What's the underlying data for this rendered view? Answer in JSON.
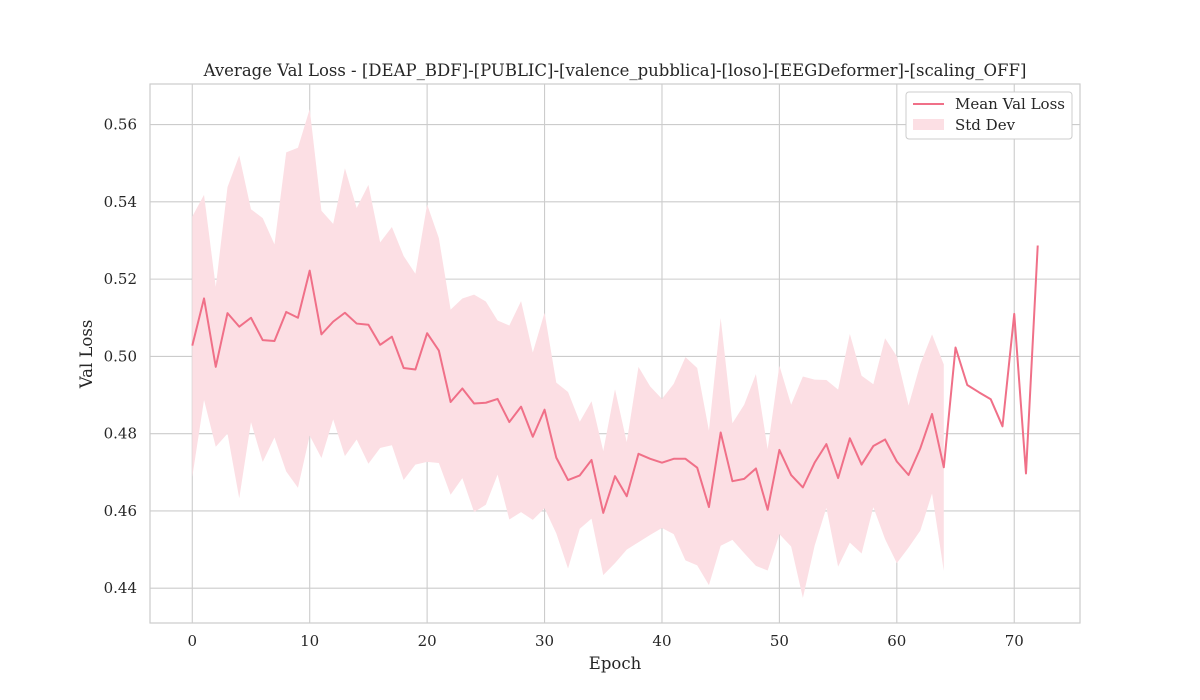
{
  "chart_data": {
    "type": "line",
    "title": "Average Val Loss - [DEAP_BDF]-[PUBLIC]-[valence_pubblica]-[loso]-[EEGDeformer]-[scaling_OFF]",
    "xlabel": "Epoch",
    "ylabel": "Val Loss",
    "xlim": [
      -3.6,
      75.6
    ],
    "ylim": [
      0.431,
      0.5705
    ],
    "xticks": [
      0,
      10,
      20,
      30,
      40,
      50,
      60,
      70
    ],
    "yticks": [
      0.44,
      0.46,
      0.48,
      0.5,
      0.52,
      0.54,
      0.56
    ],
    "ytick_labels": [
      "0.44",
      "0.46",
      "0.48",
      "0.50",
      "0.52",
      "0.54",
      "0.56"
    ],
    "grid": true,
    "legend_position": "top-right",
    "series": [
      {
        "name": "Mean Val Loss",
        "color": "#f07088",
        "x": [
          0,
          1,
          2,
          3,
          4,
          5,
          6,
          7,
          8,
          9,
          10,
          11,
          12,
          13,
          14,
          15,
          16,
          17,
          18,
          19,
          20,
          21,
          22,
          23,
          24,
          25,
          26,
          27,
          28,
          29,
          30,
          31,
          32,
          33,
          34,
          35,
          36,
          37,
          38,
          39,
          40,
          41,
          42,
          43,
          44,
          45,
          46,
          47,
          48,
          49,
          50,
          51,
          52,
          53,
          54,
          55,
          56,
          57,
          58,
          59,
          60,
          61,
          62,
          63,
          64,
          65,
          66,
          67,
          68,
          69,
          70,
          71,
          72
        ],
        "y": [
          0.5028,
          0.515,
          0.4973,
          0.5112,
          0.5077,
          0.51,
          0.5042,
          0.504,
          0.5115,
          0.51,
          0.5222,
          0.5057,
          0.509,
          0.5113,
          0.5085,
          0.5082,
          0.503,
          0.5051,
          0.497,
          0.4966,
          0.506,
          0.5015,
          0.4882,
          0.4917,
          0.4878,
          0.488,
          0.489,
          0.483,
          0.487,
          0.4792,
          0.4862,
          0.4738,
          0.468,
          0.4692,
          0.4732,
          0.4595,
          0.469,
          0.4638,
          0.4748,
          0.4735,
          0.4725,
          0.4735,
          0.4735,
          0.4712,
          0.461,
          0.4803,
          0.4677,
          0.4683,
          0.471,
          0.4603,
          0.4758,
          0.4693,
          0.4661,
          0.4725,
          0.4773,
          0.4685,
          0.4788,
          0.472,
          0.4768,
          0.4785,
          0.4728,
          0.4693,
          0.4762,
          0.4851,
          0.4713,
          0.5023,
          0.4926,
          0.4907,
          0.4889,
          0.4819,
          0.511,
          0.4697,
          0.5287
        ]
      }
    ],
    "band": {
      "name": "Std Dev",
      "color": "#fcdfe4",
      "x": [
        0,
        1,
        2,
        3,
        4,
        5,
        6,
        7,
        8,
        9,
        10,
        11,
        12,
        13,
        14,
        15,
        16,
        17,
        18,
        19,
        20,
        21,
        22,
        23,
        24,
        25,
        26,
        27,
        28,
        29,
        30,
        31,
        32,
        33,
        34,
        35,
        36,
        37,
        38,
        39,
        40,
        41,
        42,
        43,
        44,
        45,
        46,
        47,
        48,
        49,
        50,
        51,
        52,
        53,
        54,
        55,
        56,
        57,
        58,
        59,
        60,
        61,
        62,
        63,
        64
      ],
      "upper": [
        0.5362,
        0.5418,
        0.518,
        0.5438,
        0.552,
        0.5381,
        0.5358,
        0.529,
        0.5528,
        0.554,
        0.564,
        0.5377,
        0.5343,
        0.5487,
        0.5384,
        0.5444,
        0.5295,
        0.5335,
        0.526,
        0.5214,
        0.5393,
        0.5306,
        0.5121,
        0.515,
        0.516,
        0.5142,
        0.5093,
        0.508,
        0.5143,
        0.501,
        0.5113,
        0.4932,
        0.4908,
        0.4831,
        0.4884,
        0.4755,
        0.4915,
        0.4778,
        0.4973,
        0.4922,
        0.489,
        0.4929,
        0.4998,
        0.497,
        0.4808,
        0.5099,
        0.4827,
        0.4875,
        0.4954,
        0.476,
        0.4976,
        0.4875,
        0.4948,
        0.494,
        0.4939,
        0.4914,
        0.5058,
        0.495,
        0.4928,
        0.5047,
        0.5,
        0.4873,
        0.498,
        0.5057,
        0.4979
      ],
      "lower": [
        0.4688,
        0.4887,
        0.4766,
        0.48,
        0.4633,
        0.483,
        0.4727,
        0.479,
        0.4702,
        0.466,
        0.4795,
        0.4737,
        0.4837,
        0.4742,
        0.4785,
        0.4722,
        0.4763,
        0.477,
        0.468,
        0.472,
        0.4727,
        0.4724,
        0.4642,
        0.4685,
        0.4597,
        0.4616,
        0.4694,
        0.4578,
        0.4597,
        0.4577,
        0.4607,
        0.4542,
        0.4451,
        0.4554,
        0.458,
        0.4434,
        0.4465,
        0.45,
        0.4519,
        0.4538,
        0.4556,
        0.454,
        0.4472,
        0.4459,
        0.4408,
        0.451,
        0.4525,
        0.4491,
        0.4458,
        0.4446,
        0.454,
        0.4508,
        0.4375,
        0.451,
        0.4608,
        0.4456,
        0.4518,
        0.449,
        0.461,
        0.4527,
        0.4465,
        0.4505,
        0.4549,
        0.4645,
        0.4445
      ]
    }
  }
}
